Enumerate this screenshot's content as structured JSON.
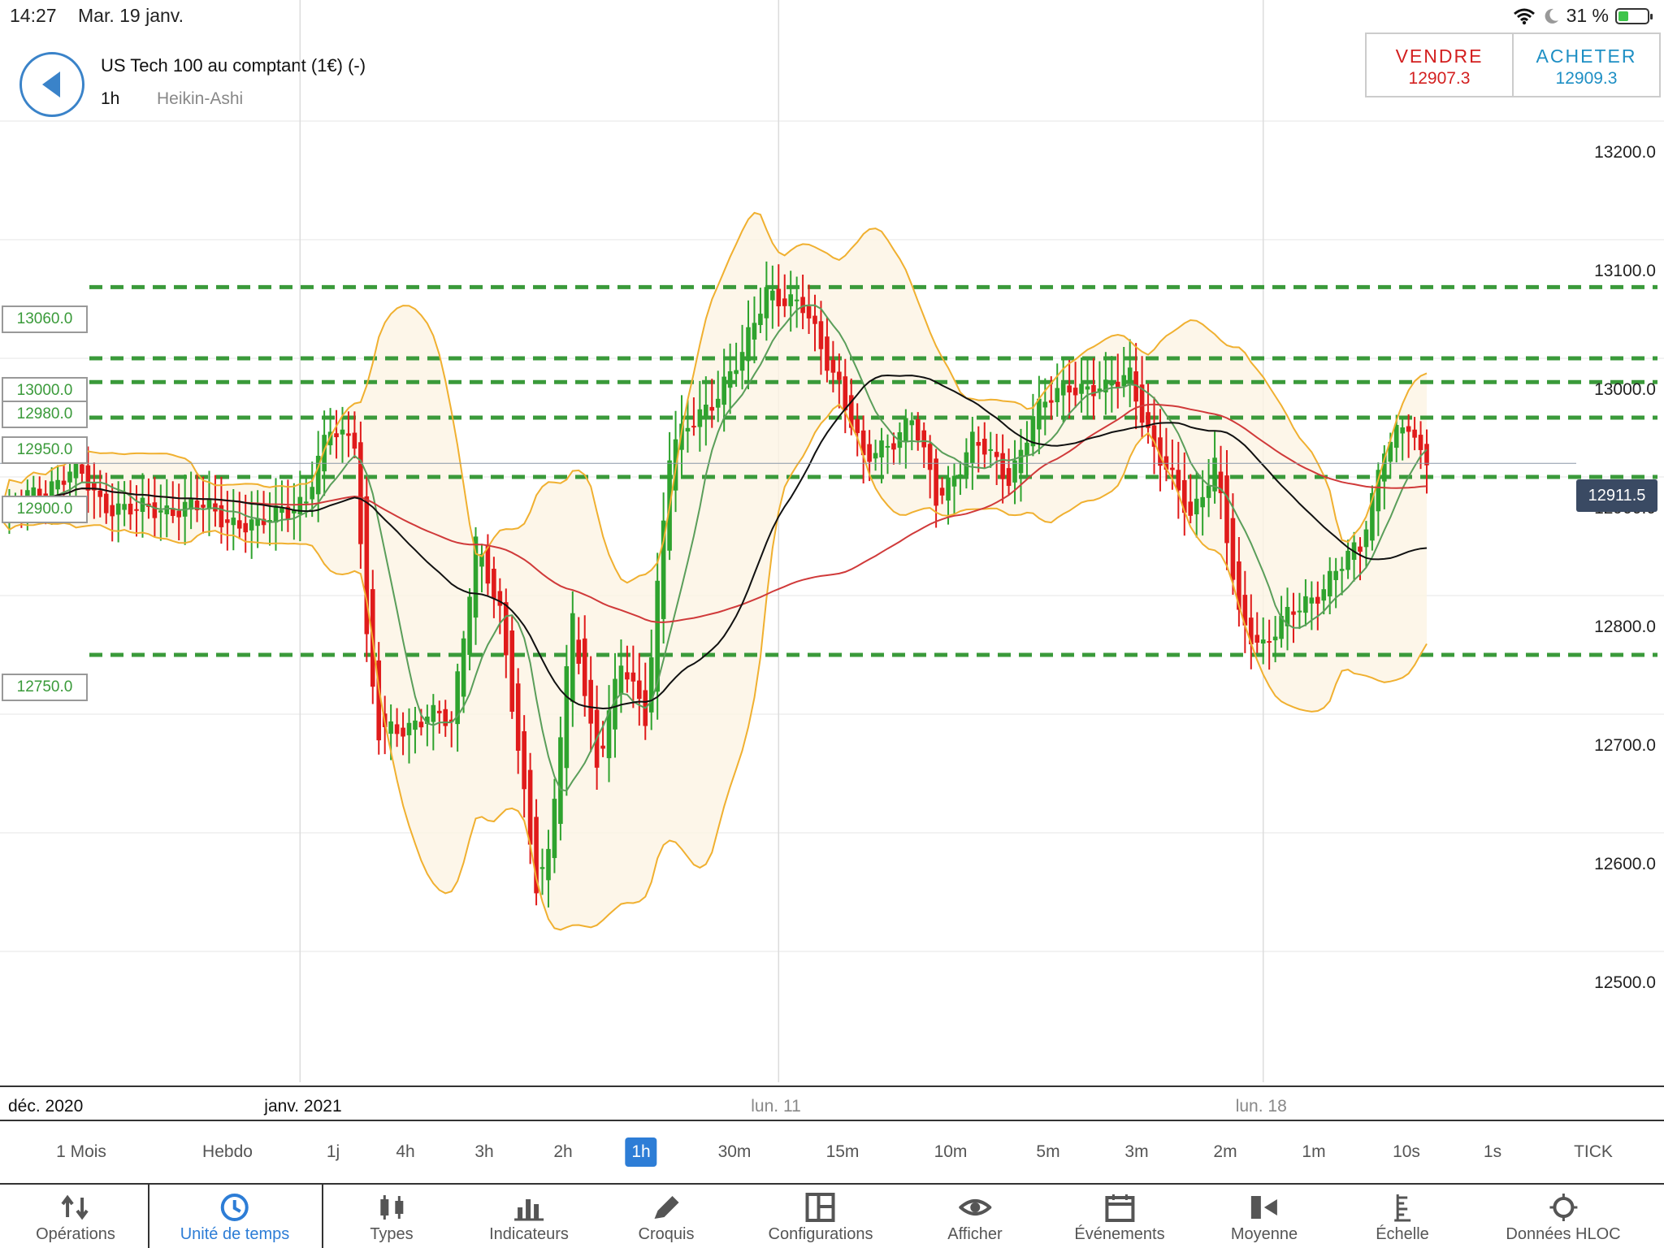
{
  "status_bar": {
    "time": "14:27",
    "date": "Mar. 19 janv.",
    "battery": "31 %",
    "battery_level": 0.31
  },
  "header": {
    "instrument": "US Tech 100 au comptant (1€) (-)",
    "timeframe": "1h",
    "chart_type": "Heikin-Ashi",
    "sell_label": "VENDRE",
    "sell_price": "12907.3",
    "buy_label": "ACHETER",
    "buy_price": "12909.3"
  },
  "colors": {
    "bull": "#2ea32e",
    "bear": "#e01b1b",
    "bollinger": "#f0b030",
    "ma_fast": "#5a9e5a",
    "ma_mid": "#111111",
    "ma_slow": "#d03a3a",
    "level": "#3a9a3a",
    "accent": "#2d7dd6"
  },
  "chart_data": {
    "type": "candlestick",
    "ylim": [
      12400,
      13240
    ],
    "y_ticks": [
      "13200.0",
      "13100.0",
      "13000.0",
      "12900.0",
      "12800.0",
      "12700.0",
      "12600.0",
      "12500.0"
    ],
    "x_labels": [
      {
        "label": "déc. 2020",
        "i": 2
      },
      {
        "label": "janv. 2021",
        "i": 49
      },
      {
        "label": "lun. 11",
        "i": 128
      },
      {
        "label": "lun. 18",
        "i": 208
      }
    ],
    "levels": [
      {
        "label": "13060.0",
        "value": 13060
      },
      {
        "label": "13000.0",
        "value": 13000
      },
      {
        "label": "12980.0",
        "value": 12980
      },
      {
        "label": "12950.0",
        "value": 12950
      },
      {
        "label": "12900.0",
        "value": 12900
      },
      {
        "label": "12750.0",
        "value": 12750
      }
    ],
    "current_price": {
      "label": "12911.5",
      "value": 12911.5
    },
    "close_anchors": [
      [
        0,
        12870
      ],
      [
        8,
        12895
      ],
      [
        12,
        12905
      ],
      [
        16,
        12880
      ],
      [
        22,
        12870
      ],
      [
        28,
        12875
      ],
      [
        34,
        12872
      ],
      [
        42,
        12855
      ],
      [
        46,
        12875
      ],
      [
        50,
        12880
      ],
      [
        54,
        12940
      ],
      [
        58,
        12935
      ],
      [
        60,
        12760
      ],
      [
        62,
        12680
      ],
      [
        70,
        12700
      ],
      [
        74,
        12690
      ],
      [
        78,
        12850
      ],
      [
        82,
        12780
      ],
      [
        88,
        12560
      ],
      [
        90,
        12580
      ],
      [
        94,
        12780
      ],
      [
        98,
        12660
      ],
      [
        102,
        12740
      ],
      [
        106,
        12700
      ],
      [
        110,
        12920
      ],
      [
        116,
        12960
      ],
      [
        122,
        13000
      ],
      [
        126,
        13060
      ],
      [
        132,
        13040
      ],
      [
        138,
        12980
      ],
      [
        142,
        12910
      ],
      [
        150,
        12950
      ],
      [
        154,
        12880
      ],
      [
        160,
        12930
      ],
      [
        166,
        12900
      ],
      [
        170,
        12950
      ],
      [
        176,
        12980
      ],
      [
        182,
        12970
      ],
      [
        186,
        12990
      ],
      [
        190,
        12920
      ],
      [
        196,
        12870
      ],
      [
        200,
        12910
      ],
      [
        204,
        12780
      ],
      [
        208,
        12760
      ],
      [
        214,
        12790
      ],
      [
        220,
        12820
      ],
      [
        224,
        12840
      ],
      [
        228,
        12930
      ],
      [
        232,
        12940
      ],
      [
        234,
        12915
      ]
    ]
  },
  "timeframes": [
    "1 Mois",
    "Hebdo",
    "1j",
    "4h",
    "3h",
    "2h",
    "1h",
    "30m",
    "15m",
    "10m",
    "5m",
    "3m",
    "2m",
    "1m",
    "10s",
    "1s",
    "TICK"
  ],
  "active_timeframe": "1h",
  "toolbar": [
    {
      "label": "Opérations",
      "icon": "arrows-swap-icon"
    },
    {
      "label": "Unité de temps",
      "icon": "clock-icon"
    },
    {
      "label": "Types",
      "icon": "candles-icon"
    },
    {
      "label": "Indicateurs",
      "icon": "bar-chart-icon"
    },
    {
      "label": "Croquis",
      "icon": "pencil-icon"
    },
    {
      "label": "Configurations",
      "icon": "layout-icon"
    },
    {
      "label": "Afficher",
      "icon": "eye-icon"
    },
    {
      "label": "Événements",
      "icon": "calendar-icon"
    },
    {
      "label": "Moyenne",
      "icon": "average-icon"
    },
    {
      "label": "Échelle",
      "icon": "scale-icon"
    },
    {
      "label": "Données HLOC",
      "icon": "crosshair-icon"
    }
  ]
}
